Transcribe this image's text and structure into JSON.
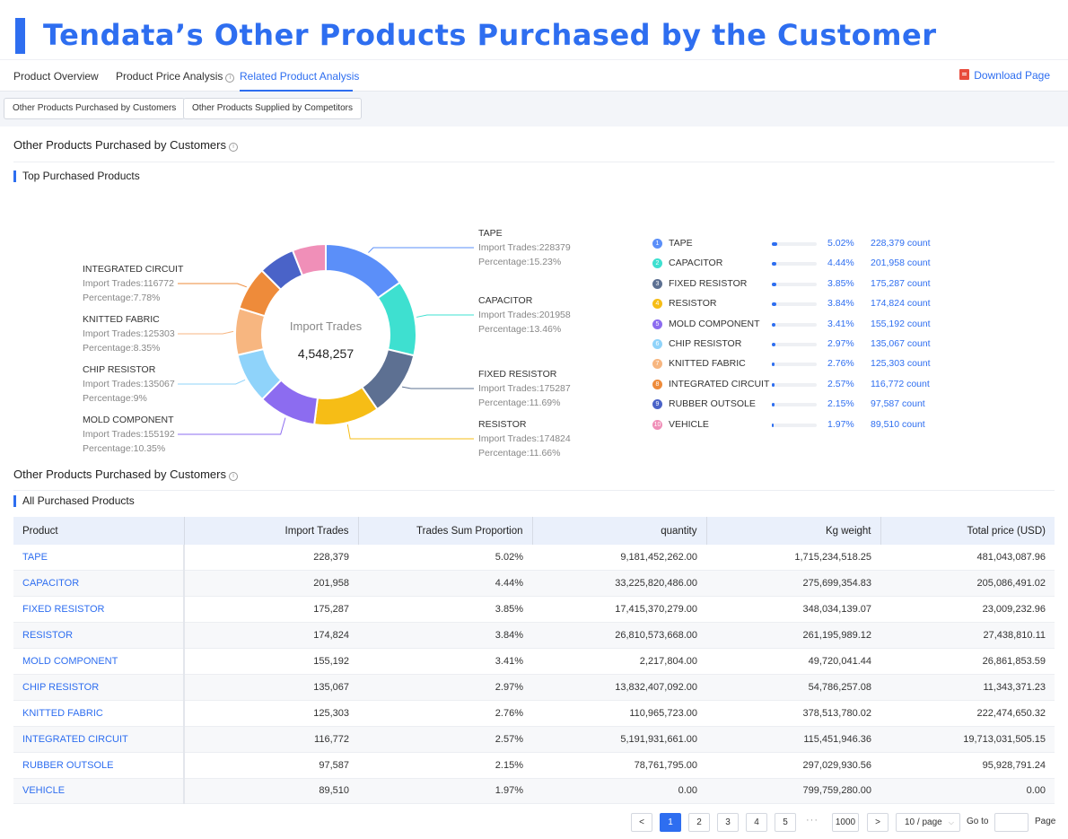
{
  "banner": {
    "title": "Tendata’s Other Products Purchased by the Customer"
  },
  "tabs": [
    {
      "label": "Product Overview"
    },
    {
      "label": "Product Price Analysis"
    },
    {
      "label": "Related Product Analysis"
    }
  ],
  "download_label": "Download Page",
  "subtabs": [
    {
      "label": "Other Products Purchased by Customers"
    },
    {
      "label": "Other Products Supplied by Competitors"
    }
  ],
  "section1": {
    "title": "Other Products Purchased by Customers",
    "subtitle": "Top Purchased Products"
  },
  "section2": {
    "title": "Other Products Purchased by Customers",
    "subtitle": "All Purchased Products"
  },
  "chart_data": {
    "type": "pie",
    "center_label": "Import Trades",
    "center_value": "4,548,257",
    "slices": [
      {
        "name": "TAPE",
        "value": 228379,
        "color": "#5b8ff9"
      },
      {
        "name": "CAPACITOR",
        "value": 201958,
        "color": "#3ee0d0"
      },
      {
        "name": "FIXED RESISTOR",
        "value": 175287,
        "color": "#5d7092"
      },
      {
        "name": "RESISTOR",
        "value": 174824,
        "color": "#f6bd16"
      },
      {
        "name": "MOLD COMPONENT",
        "value": 155192,
        "color": "#8c6cf0"
      },
      {
        "name": "CHIP RESISTOR",
        "value": 135067,
        "color": "#8fd3fa"
      },
      {
        "name": "KNITTED FABRIC",
        "value": 125303,
        "color": "#f7b680"
      },
      {
        "name": "INTEGRATED CIRCUIT",
        "value": 116772,
        "color": "#ee8b3a"
      },
      {
        "name": "RUBBER OUTSOLE",
        "value": 97587,
        "color": "#4a63c8"
      },
      {
        "name": "VEHICLE",
        "value": 89510,
        "color": "#f08fb8"
      }
    ],
    "callouts": [
      {
        "name": "TAPE",
        "trades": "Import Trades:228379",
        "pct": "Percentage:15.23%"
      },
      {
        "name": "CAPACITOR",
        "trades": "Import Trades:201958",
        "pct": "Percentage:13.46%"
      },
      {
        "name": "FIXED RESISTOR",
        "trades": "Import Trades:175287",
        "pct": "Percentage:11.69%"
      },
      {
        "name": "RESISTOR",
        "trades": "Import Trades:174824",
        "pct": "Percentage:11.66%"
      },
      {
        "name": "INTEGRATED CIRCUIT",
        "trades": "Import Trades:116772",
        "pct": "Percentage:7.78%"
      },
      {
        "name": "KNITTED FABRIC",
        "trades": "Import Trades:125303",
        "pct": "Percentage:8.35%"
      },
      {
        "name": "CHIP RESISTOR",
        "trades": "Import Trades:135067",
        "pct": "Percentage:9%"
      },
      {
        "name": "MOLD COMPONENT",
        "trades": "Import Trades:155192",
        "pct": "Percentage:10.35%"
      }
    ]
  },
  "legend": [
    {
      "num": "1",
      "name": "TAPE",
      "pct": "5.02%",
      "fill": 0.0502,
      "count": "228,379 count",
      "color": "#5b8ff9"
    },
    {
      "num": "2",
      "name": "CAPACITOR",
      "pct": "4.44%",
      "fill": 0.0444,
      "count": "201,958 count",
      "color": "#3ee0d0"
    },
    {
      "num": "3",
      "name": "FIXED RESISTOR",
      "pct": "3.85%",
      "fill": 0.0385,
      "count": "175,287 count",
      "color": "#5d7092"
    },
    {
      "num": "4",
      "name": "RESISTOR",
      "pct": "3.84%",
      "fill": 0.0384,
      "count": "174,824 count",
      "color": "#f6bd16"
    },
    {
      "num": "5",
      "name": "MOLD COMPONENT",
      "pct": "3.41%",
      "fill": 0.0341,
      "count": "155,192 count",
      "color": "#8c6cf0"
    },
    {
      "num": "6",
      "name": "CHIP RESISTOR",
      "pct": "2.97%",
      "fill": 0.0297,
      "count": "135,067 count",
      "color": "#8fd3fa"
    },
    {
      "num": "7",
      "name": "KNITTED FABRIC",
      "pct": "2.76%",
      "fill": 0.0276,
      "count": "125,303 count",
      "color": "#f7b680"
    },
    {
      "num": "8",
      "name": "INTEGRATED CIRCUIT",
      "pct": "2.57%",
      "fill": 0.0257,
      "count": "116,772 count",
      "color": "#ee8b3a"
    },
    {
      "num": "9",
      "name": "RUBBER OUTSOLE",
      "pct": "2.15%",
      "fill": 0.0215,
      "count": "97,587 count",
      "color": "#4a63c8"
    },
    {
      "num": "10",
      "name": "VEHICLE",
      "pct": "1.97%",
      "fill": 0.0197,
      "count": "89,510 count",
      "color": "#f08fb8"
    }
  ],
  "table": {
    "headers": [
      "Product",
      "Import Trades",
      "Trades Sum Proportion",
      "quantity",
      "Kg weight",
      "Total price (USD)"
    ],
    "rows": [
      [
        "TAPE",
        "228,379",
        "5.02%",
        "9,181,452,262.00",
        "1,715,234,518.25",
        "481,043,087.96"
      ],
      [
        "CAPACITOR",
        "201,958",
        "4.44%",
        "33,225,820,486.00",
        "275,699,354.83",
        "205,086,491.02"
      ],
      [
        "FIXED RESISTOR",
        "175,287",
        "3.85%",
        "17,415,370,279.00",
        "348,034,139.07",
        "23,009,232.96"
      ],
      [
        "RESISTOR",
        "174,824",
        "3.84%",
        "26,810,573,668.00",
        "261,195,989.12",
        "27,438,810.11"
      ],
      [
        "MOLD COMPONENT",
        "155,192",
        "3.41%",
        "2,217,804.00",
        "49,720,041.44",
        "26,861,853.59"
      ],
      [
        "CHIP RESISTOR",
        "135,067",
        "2.97%",
        "13,832,407,092.00",
        "54,786,257.08",
        "11,343,371.23"
      ],
      [
        "KNITTED FABRIC",
        "125,303",
        "2.76%",
        "110,965,723.00",
        "378,513,780.02",
        "222,474,650.32"
      ],
      [
        "INTEGRATED CIRCUIT",
        "116,772",
        "2.57%",
        "5,191,931,661.00",
        "115,451,946.36",
        "19,713,031,505.15"
      ],
      [
        "RUBBER OUTSOLE",
        "97,587",
        "2.15%",
        "78,761,795.00",
        "297,029,930.56",
        "95,928,791.24"
      ],
      [
        "VEHICLE",
        "89,510",
        "1.97%",
        "0.00",
        "799,759,280.00",
        "0.00"
      ]
    ]
  },
  "pagination": {
    "prev": "<",
    "pages": [
      "1",
      "2",
      "3",
      "4",
      "5"
    ],
    "dots": "···",
    "last": "1000",
    "next": ">",
    "page_size": "10 / page",
    "goto_label": "Go to",
    "page_label": "Page"
  }
}
